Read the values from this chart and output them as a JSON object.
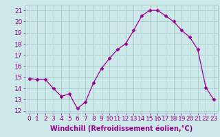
{
  "x": [
    0,
    1,
    2,
    3,
    4,
    5,
    6,
    7,
    8,
    9,
    10,
    11,
    12,
    13,
    14,
    15,
    16,
    17,
    18,
    19,
    20,
    21,
    22,
    23
  ],
  "y": [
    14.9,
    14.8,
    14.8,
    14.0,
    13.3,
    13.5,
    12.2,
    12.8,
    14.5,
    15.8,
    16.7,
    17.5,
    18.0,
    19.2,
    20.5,
    21.0,
    21.0,
    20.5,
    20.0,
    19.2,
    18.6,
    17.5,
    14.1,
    13.0
  ],
  "line_color": "#990099",
  "marker": "D",
  "marker_size": 2.5,
  "bg_color": "#cce8e8",
  "grid_color": "#aacccc",
  "xlabel": "Windchill (Refroidissement éolien,°C)",
  "xlabel_color": "#990099",
  "xlabel_fontsize": 7,
  "tick_color": "#990099",
  "ylim": [
    11.8,
    21.5
  ],
  "yticks": [
    12,
    13,
    14,
    15,
    16,
    17,
    18,
    19,
    20,
    21
  ],
  "xticks": [
    0,
    1,
    2,
    3,
    4,
    5,
    6,
    7,
    8,
    9,
    10,
    11,
    12,
    13,
    14,
    15,
    16,
    17,
    18,
    19,
    20,
    21,
    22,
    23
  ],
  "tick_fontsize": 6.5
}
